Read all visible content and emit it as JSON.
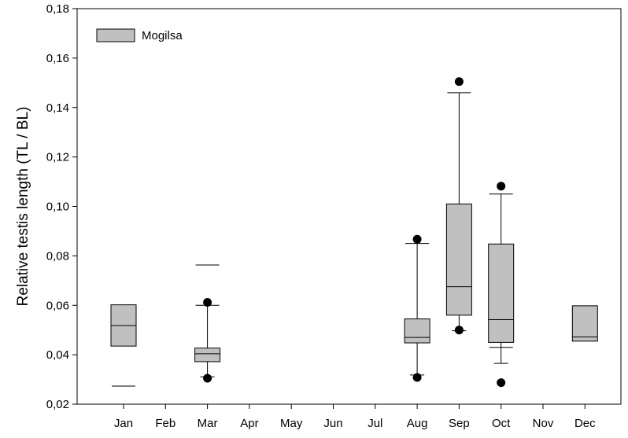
{
  "chart_data": {
    "type": "box",
    "title": "",
    "xlabel": "",
    "ylabel": "Relative testis length (TL / BL)",
    "ylim": [
      0.02,
      0.18
    ],
    "y_ticks": [
      "0,02",
      "0,04",
      "0,06",
      "0,08",
      "0,10",
      "0,12",
      "0,14",
      "0,16",
      "0,18"
    ],
    "categories": [
      "Jan",
      "Feb",
      "Mar",
      "Apr",
      "May",
      "Jun",
      "Jul",
      "Aug",
      "Sep",
      "Oct",
      "Nov",
      "Dec"
    ],
    "grid": false,
    "legend": {
      "position": "top-left",
      "entries": [
        {
          "label": "Mogilsa",
          "color": "#c0c0c0"
        }
      ]
    },
    "series": [
      {
        "name": "Mogilsa",
        "color": "#c0c0c0",
        "boxes": [
          {
            "category": "Jan",
            "q1": 0.0435,
            "median": 0.0518,
            "q3": 0.0602,
            "whisker_low": null,
            "whisker_high": null,
            "caps": [
              0.0273
            ],
            "outliers": []
          },
          {
            "category": "Mar",
            "q1": 0.0372,
            "median": 0.0404,
            "q3": 0.0427,
            "whisker_low": 0.0311,
            "whisker_high": 0.06,
            "caps": [
              0.0763
            ],
            "outliers": [
              0.0305,
              0.0612
            ]
          },
          {
            "category": "Aug",
            "q1": 0.0448,
            "median": 0.047,
            "q3": 0.0545,
            "whisker_low": 0.0318,
            "whisker_high": 0.085,
            "caps": [],
            "outliers": [
              0.0308,
              0.0867
            ]
          },
          {
            "category": "Sep",
            "q1": 0.056,
            "median": 0.0675,
            "q3": 0.101,
            "whisker_low": 0.0497,
            "whisker_high": 0.146,
            "caps": [],
            "outliers": [
              0.05,
              0.1505
            ]
          },
          {
            "category": "Oct",
            "q1": 0.045,
            "median": 0.0542,
            "q3": 0.0848,
            "whisker_low": 0.0365,
            "whisker_high": 0.105,
            "caps": [
              0.043
            ],
            "outliers": [
              0.0287,
              0.1082
            ]
          },
          {
            "category": "Dec",
            "q1": 0.0455,
            "median": 0.0472,
            "q3": 0.0598,
            "whisker_low": null,
            "whisker_high": null,
            "caps": [],
            "outliers": []
          }
        ]
      }
    ]
  }
}
